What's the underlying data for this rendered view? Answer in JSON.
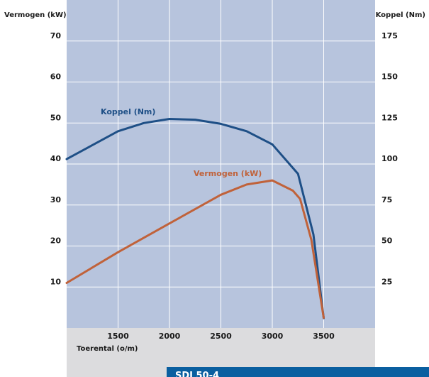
{
  "chart_data": {
    "type": "line",
    "xlabel": "Toerental (o/m)",
    "ylabel_left": "Vermogen (kW)",
    "ylabel_right": "Koppel (Nm)",
    "xlim": [
      1000,
      4000
    ],
    "ylim_left": [
      0,
      80
    ],
    "ylim_right": [
      0,
      200
    ],
    "x_ticks": [
      1500,
      2000,
      2500,
      3000,
      3500
    ],
    "y_ticks_left": [
      10,
      20,
      30,
      40,
      50,
      60,
      70
    ],
    "y_ticks_right": [
      25,
      50,
      75,
      100,
      125,
      150,
      175
    ],
    "grid": true,
    "series": [
      {
        "name": "Koppel (Nm)",
        "axis": "right",
        "color": "#1e4f86",
        "x": [
          1000,
          1500,
          1750,
          2000,
          2250,
          2500,
          2750,
          3000,
          3250,
          3400,
          3500
        ],
        "y": [
          103,
          120,
          125,
          127.5,
          127,
          124.5,
          120,
          112,
          94,
          57,
          6
        ]
      },
      {
        "name": "Vermogen (kW)",
        "axis": "left",
        "color": "#c0623a",
        "x": [
          1000,
          1500,
          2000,
          2500,
          2750,
          3000,
          3200,
          3270,
          3380,
          3500
        ],
        "y": [
          11,
          18.5,
          25.5,
          32.5,
          35,
          36,
          33.5,
          31.5,
          21.5,
          2.5
        ]
      }
    ]
  },
  "footer": {
    "code": "SDI 50-4"
  },
  "colors": {
    "plot_background": "#b7c4dd",
    "below_plot": "#dcdcde",
    "grid": "#ffffff",
    "code_box": "#0a5fa0"
  }
}
